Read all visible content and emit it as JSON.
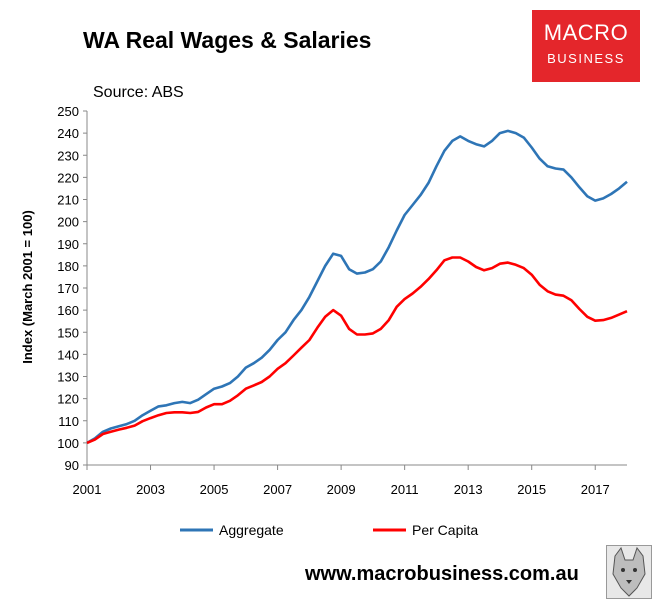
{
  "header": {
    "title": "WA Real Wages & Salaries",
    "source": "Source: ABS"
  },
  "logo": {
    "line1": "MACRO",
    "line2": "BUSINESS",
    "color": "#e4262b"
  },
  "footer": {
    "url": "www.macrobusiness.com.au"
  },
  "chart_data": {
    "type": "line",
    "title": "WA Real Wages & Salaries",
    "xlabel": "",
    "ylabel": "Index (March 2001 = 100)",
    "xlim": [
      2001,
      2018
    ],
    "ylim": [
      90,
      250
    ],
    "x_ticks": [
      "2001",
      "2003",
      "2005",
      "2007",
      "2009",
      "2011",
      "2013",
      "2015",
      "2017"
    ],
    "y_ticks": [
      "90",
      "100",
      "110",
      "120",
      "130",
      "140",
      "150",
      "160",
      "170",
      "180",
      "190",
      "200",
      "210",
      "220",
      "230",
      "240",
      "250"
    ],
    "grid": false,
    "legend_position": "bottom",
    "series": [
      {
        "name": "Aggregate",
        "color": "#2e75b6",
        "points": [
          [
            2001.0,
            100
          ],
          [
            2001.25,
            102
          ],
          [
            2001.5,
            105
          ],
          [
            2001.75,
            106.5
          ],
          [
            2002.0,
            107.5
          ],
          [
            2002.25,
            108.5
          ],
          [
            2002.5,
            110
          ],
          [
            2002.75,
            112.5
          ],
          [
            2003.0,
            114.5
          ],
          [
            2003.25,
            116.5
          ],
          [
            2003.5,
            117
          ],
          [
            2003.75,
            118
          ],
          [
            2004.0,
            118.5
          ],
          [
            2004.25,
            118
          ],
          [
            2004.5,
            119.5
          ],
          [
            2004.75,
            122
          ],
          [
            2005.0,
            124.5
          ],
          [
            2005.25,
            125.5
          ],
          [
            2005.5,
            127
          ],
          [
            2005.75,
            130
          ],
          [
            2006.0,
            134
          ],
          [
            2006.25,
            136
          ],
          [
            2006.5,
            138.5
          ],
          [
            2006.75,
            142
          ],
          [
            2007.0,
            146.5
          ],
          [
            2007.25,
            150
          ],
          [
            2007.5,
            155.5
          ],
          [
            2007.75,
            160
          ],
          [
            2008.0,
            166
          ],
          [
            2008.25,
            173
          ],
          [
            2008.5,
            180
          ],
          [
            2008.75,
            185.5
          ],
          [
            2009.0,
            184.5
          ],
          [
            2009.25,
            178.5
          ],
          [
            2009.5,
            176.5
          ],
          [
            2009.75,
            177
          ],
          [
            2010.0,
            178.5
          ],
          [
            2010.25,
            182
          ],
          [
            2010.5,
            188.5
          ],
          [
            2010.75,
            196
          ],
          [
            2011.0,
            203
          ],
          [
            2011.25,
            207.5
          ],
          [
            2011.5,
            212
          ],
          [
            2011.75,
            217.5
          ],
          [
            2012.0,
            225
          ],
          [
            2012.25,
            232
          ],
          [
            2012.5,
            236.5
          ],
          [
            2012.75,
            238.5
          ],
          [
            2013.0,
            236.5
          ],
          [
            2013.25,
            235
          ],
          [
            2013.5,
            234
          ],
          [
            2013.75,
            236.5
          ],
          [
            2014.0,
            240
          ],
          [
            2014.25,
            241
          ],
          [
            2014.5,
            240
          ],
          [
            2014.75,
            238
          ],
          [
            2015.0,
            233.5
          ],
          [
            2015.25,
            228.5
          ],
          [
            2015.5,
            225
          ],
          [
            2015.75,
            224
          ],
          [
            2016.0,
            223.5
          ],
          [
            2016.25,
            220
          ],
          [
            2016.5,
            215.5
          ],
          [
            2016.75,
            211.5
          ],
          [
            2017.0,
            209.5
          ],
          [
            2017.25,
            210.5
          ],
          [
            2017.5,
            212.5
          ],
          [
            2017.75,
            215
          ],
          [
            2018.0,
            218
          ]
        ]
      },
      {
        "name": "Per Capita",
        "color": "#ff0000",
        "points": [
          [
            2001.0,
            100
          ],
          [
            2001.25,
            101.5
          ],
          [
            2001.5,
            104
          ],
          [
            2001.75,
            105
          ],
          [
            2002.0,
            106
          ],
          [
            2002.25,
            106.8
          ],
          [
            2002.5,
            107.8
          ],
          [
            2002.75,
            109.8
          ],
          [
            2003.0,
            111.2
          ],
          [
            2003.25,
            112.5
          ],
          [
            2003.5,
            113.5
          ],
          [
            2003.75,
            113.8
          ],
          [
            2004.0,
            113.8
          ],
          [
            2004.25,
            113.5
          ],
          [
            2004.5,
            114
          ],
          [
            2004.75,
            116
          ],
          [
            2005.0,
            117.5
          ],
          [
            2005.25,
            117.5
          ],
          [
            2005.5,
            119
          ],
          [
            2005.75,
            121.5
          ],
          [
            2006.0,
            124.5
          ],
          [
            2006.25,
            126
          ],
          [
            2006.5,
            127.5
          ],
          [
            2006.75,
            130
          ],
          [
            2007.0,
            133.5
          ],
          [
            2007.25,
            136
          ],
          [
            2007.5,
            139.5
          ],
          [
            2007.75,
            143
          ],
          [
            2008.0,
            146.5
          ],
          [
            2008.25,
            152
          ],
          [
            2008.5,
            157
          ],
          [
            2008.75,
            160
          ],
          [
            2009.0,
            157.5
          ],
          [
            2009.25,
            151.5
          ],
          [
            2009.5,
            149
          ],
          [
            2009.75,
            149
          ],
          [
            2010.0,
            149.5
          ],
          [
            2010.25,
            151.5
          ],
          [
            2010.5,
            155.5
          ],
          [
            2010.75,
            161.5
          ],
          [
            2011.0,
            165
          ],
          [
            2011.25,
            167.5
          ],
          [
            2011.5,
            170.5
          ],
          [
            2011.75,
            174
          ],
          [
            2012.0,
            178
          ],
          [
            2012.25,
            182.5
          ],
          [
            2012.5,
            183.8
          ],
          [
            2012.75,
            183.8
          ],
          [
            2013.0,
            182
          ],
          [
            2013.25,
            179.5
          ],
          [
            2013.5,
            178
          ],
          [
            2013.75,
            179
          ],
          [
            2014.0,
            181
          ],
          [
            2014.25,
            181.5
          ],
          [
            2014.5,
            180.5
          ],
          [
            2014.75,
            179
          ],
          [
            2015.0,
            176
          ],
          [
            2015.25,
            171.5
          ],
          [
            2015.5,
            168.5
          ],
          [
            2015.75,
            167
          ],
          [
            2016.0,
            166.5
          ],
          [
            2016.25,
            164.5
          ],
          [
            2016.5,
            160.5
          ],
          [
            2016.75,
            157
          ],
          [
            2017.0,
            155.2
          ],
          [
            2017.25,
            155.5
          ],
          [
            2017.5,
            156.5
          ],
          [
            2017.75,
            158
          ],
          [
            2018.0,
            159.5
          ]
        ]
      }
    ]
  }
}
